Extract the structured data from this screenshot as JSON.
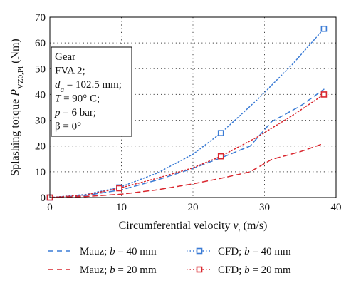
{
  "chart_data": {
    "type": "line",
    "xlabel": "Circumferential velocity v_t (m/s)",
    "ylabel": "Splashing torque P_VZ0,Pl (Nm)",
    "xlim": [
      0,
      40
    ],
    "ylim": [
      0,
      70
    ],
    "xticks": [
      "0",
      "10",
      "20",
      "30",
      "40"
    ],
    "yticks": [
      "0",
      "10",
      "20",
      "30",
      "40",
      "50",
      "60",
      "70"
    ],
    "grid": true,
    "series": [
      {
        "name": "Mauz; b = 40 mm",
        "color": "#3a7bd5",
        "style": "dashed",
        "marker": "none",
        "x": [
          0,
          5,
          10,
          15,
          20,
          24,
          28,
          31,
          35,
          38.3
        ],
        "y": [
          0,
          0.8,
          3.0,
          6.8,
          11.3,
          15.5,
          20.0,
          29.5,
          35.5,
          42.0
        ]
      },
      {
        "name": "Mauz; b = 20 mm",
        "color": "#d9262e",
        "style": "dashed",
        "marker": "none",
        "x": [
          0,
          5,
          10,
          15,
          20,
          24,
          28,
          31,
          35,
          38.3
        ],
        "y": [
          0,
          0.4,
          1.3,
          3.0,
          5.3,
          7.5,
          10.0,
          14.8,
          17.8,
          21.0
        ]
      },
      {
        "name": "CFD; b = 40 mm",
        "color": "#3a7bd5",
        "style": "dotted",
        "marker": "square",
        "x": [
          0,
          5,
          9.7,
          15,
          20,
          23.9,
          29,
          34,
          38.3
        ],
        "y": [
          0,
          1.2,
          3.9,
          9.5,
          16.8,
          25.0,
          38.0,
          52.0,
          65.5
        ],
        "marker_x": [
          0,
          9.7,
          23.9,
          38.3
        ],
        "marker_y": [
          0,
          3.9,
          25.0,
          65.5
        ]
      },
      {
        "name": "CFD; b = 20 mm",
        "color": "#d9262e",
        "style": "dotted",
        "marker": "square",
        "x": [
          0,
          5,
          9.7,
          15,
          20,
          23.9,
          29,
          34,
          38.3
        ],
        "y": [
          0,
          1.0,
          3.6,
          7.5,
          11.5,
          16.0,
          23.5,
          32.0,
          40.0
        ],
        "marker_x": [
          0,
          9.7,
          23.9,
          38.3
        ],
        "marker_y": [
          0,
          3.6,
          16.0,
          40.0
        ]
      }
    ],
    "annotation": {
      "lines": [
        "Gear",
        "FVA 2;",
        "d_a = 102.5 mm;",
        "T = 90° C;",
        "p = 6 bar;",
        "β = 0°"
      ]
    },
    "legend": {
      "placement": "bottom",
      "entries": [
        {
          "label": "Mauz; b = 40 mm",
          "series": 0
        },
        {
          "label": "CFD; b = 40 mm",
          "series": 2
        },
        {
          "label": "Mauz; b = 20 mm",
          "series": 1
        },
        {
          "label": "CFD; b = 20 mm",
          "series": 3
        }
      ]
    }
  }
}
